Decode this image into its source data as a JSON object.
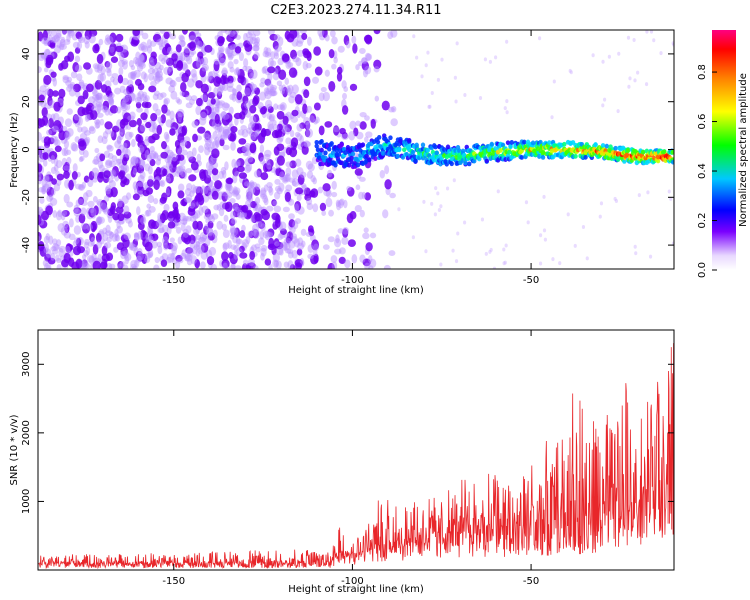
{
  "title": "C2E3.2023.274.11.34.R11",
  "chart_data": [
    {
      "type": "heatmap",
      "title": "C2E3.2023.274.11.34.R11",
      "xlabel": "Height of straight line (km)",
      "ylabel": "Frequency (Hz)",
      "xlim": [
        -188,
        -10
      ],
      "ylim": [
        -50,
        50
      ],
      "x_ticks": [
        -150,
        -100,
        -50
      ],
      "y_ticks": [
        -40,
        -20,
        0,
        20,
        40
      ],
      "colorbar": {
        "label": "Normalized spectral amplitude",
        "range": [
          0,
          0.97
        ],
        "ticks": [
          0.0,
          0.2,
          0.4,
          0.6,
          0.8
        ],
        "colors": [
          "#ffffff",
          "#7a00ff",
          "#0000ff",
          "#00c8ff",
          "#00ff00",
          "#ffff00",
          "#ff8000",
          "#ff0000",
          "#ff0080"
        ]
      },
      "signal_track": {
        "description_hidden": true,
        "x": [
          -110,
          -100,
          -90,
          -80,
          -70,
          -60,
          -50,
          -40,
          -30,
          -20,
          -12
        ],
        "frequency": [
          -1,
          -3,
          2,
          -2,
          -3,
          -1,
          0,
          0,
          -1,
          -3,
          -3
        ]
      }
    },
    {
      "type": "line",
      "xlabel": "Height of straight line (km)",
      "ylabel": "SNR (10 * v/v)",
      "xlim": [
        -188,
        -10
      ],
      "ylim": [
        0,
        3500
      ],
      "x_ticks": [
        -150,
        -100,
        -50
      ],
      "y_ticks": [
        1000,
        2000,
        3000
      ],
      "color": "#e8262a",
      "envelope": {
        "x": [
          -188,
          -150,
          -120,
          -106,
          -104,
          -100,
          -93,
          -85,
          -75,
          -65,
          -55,
          -45,
          -38,
          -30,
          -25,
          -20,
          -15,
          -12,
          -10
        ],
        "median": [
          100,
          100,
          105,
          110,
          300,
          250,
          350,
          450,
          550,
          600,
          650,
          650,
          700,
          800,
          900,
          1000,
          1400,
          1700,
          1500
        ],
        "peak": [
          230,
          250,
          300,
          300,
          850,
          400,
          1050,
          1000,
          1100,
          1500,
          1400,
          1950,
          2650,
          2000,
          3050,
          2200,
          2800,
          3450,
          3400
        ]
      }
    }
  ]
}
